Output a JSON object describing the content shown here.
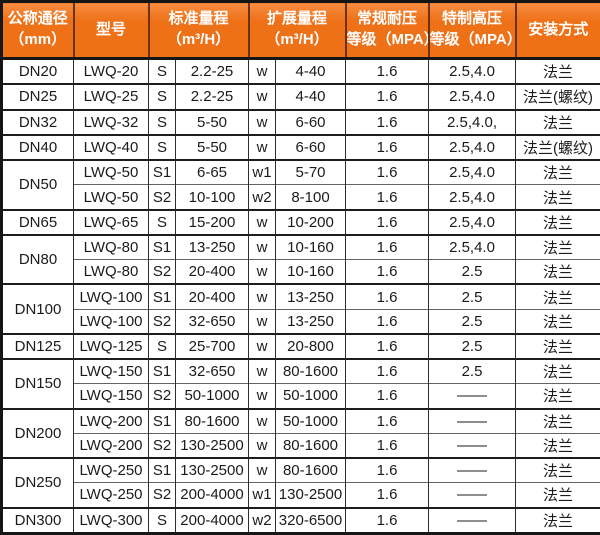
{
  "colors": {
    "header_bg": "#ee7118",
    "header_bg_highlight": "#f78d42",
    "header_text": "#ffffff",
    "header_divider": "#6e3208",
    "border_outer": "#161616",
    "border_group": "#1d1d1d",
    "border_row": "#636363",
    "border_vertical": "#2e2e2e",
    "body_bg": "#ffffff",
    "body_text": "#1b1b1b"
  },
  "chart_data": {
    "type": "table",
    "title": "",
    "header": {
      "cells": [
        {
          "lines": [
            "公称通径",
            "（mm）"
          ],
          "colspan": 1,
          "name": "nominal-diameter"
        },
        {
          "lines": [
            "型号"
          ],
          "colspan": 1,
          "name": "model"
        },
        {
          "lines": [
            "标准量程",
            "（m³/H）"
          ],
          "colspan": 2,
          "name": "standard-range"
        },
        {
          "lines": [
            "扩展量程",
            "（m³/H）"
          ],
          "colspan": 2,
          "name": "extended-range"
        },
        {
          "lines": [
            "常规耐压",
            "等级（MPA）"
          ],
          "colspan": 1,
          "name": "standard-pressure-rating"
        },
        {
          "lines": [
            "特制高压",
            "等级（MPA）"
          ],
          "colspan": 1,
          "name": "high-pressure-rating"
        },
        {
          "lines": [
            "安装方式"
          ],
          "colspan": 1,
          "name": "installation-method"
        }
      ]
    },
    "groups": [
      {
        "dn": "DN20",
        "rows": [
          {
            "model": "LWQ-20",
            "std_code": "S",
            "std_range": "2.2-25",
            "ext_code": "w",
            "ext_range": "4-40",
            "pressure": "1.6",
            "high_pressure": "2.5,4.0",
            "install": "法兰"
          }
        ]
      },
      {
        "dn": "DN25",
        "rows": [
          {
            "model": "LWQ-25",
            "std_code": "S",
            "std_range": "2.2-25",
            "ext_code": "w",
            "ext_range": "4-40",
            "pressure": "1.6",
            "high_pressure": "2.5,4.0",
            "install": "法兰(螺纹)"
          }
        ]
      },
      {
        "dn": "DN32",
        "rows": [
          {
            "model": "LWQ-32",
            "std_code": "S",
            "std_range": "5-50",
            "ext_code": "w",
            "ext_range": "6-60",
            "pressure": "1.6",
            "high_pressure": "2.5,4.0,",
            "install": "法兰"
          }
        ]
      },
      {
        "dn": "DN40",
        "rows": [
          {
            "model": "LWQ-40",
            "std_code": "S",
            "std_range": "5-50",
            "ext_code": "w",
            "ext_range": "6-60",
            "pressure": "1.6",
            "high_pressure": "2.5,4.0",
            "install": "法兰(螺纹)"
          }
        ]
      },
      {
        "dn": "DN50",
        "rows": [
          {
            "model": "LWQ-50",
            "std_code": "S1",
            "std_range": "6-65",
            "ext_code": "w1",
            "ext_range": "5-70",
            "pressure": "1.6",
            "high_pressure": "2.5,4.0",
            "install": "法兰"
          },
          {
            "model": "LWQ-50",
            "std_code": "S2",
            "std_range": "10-100",
            "ext_code": "w2",
            "ext_range": "8-100",
            "pressure": "1.6",
            "high_pressure": "2.5,4.0",
            "install": "法兰"
          }
        ]
      },
      {
        "dn": "DN65",
        "rows": [
          {
            "model": "LWQ-65",
            "std_code": "S",
            "std_range": "15-200",
            "ext_code": "w",
            "ext_range": "10-200",
            "pressure": "1.6",
            "high_pressure": "2.5,4.0",
            "install": "法兰"
          }
        ]
      },
      {
        "dn": "DN80",
        "rows": [
          {
            "model": "LWQ-80",
            "std_code": "S1",
            "std_range": "13-250",
            "ext_code": "w",
            "ext_range": "10-160",
            "pressure": "1.6",
            "high_pressure": "2.5,4.0",
            "install": "法兰"
          },
          {
            "model": "LWQ-80",
            "std_code": "S2",
            "std_range": "20-400",
            "ext_code": "w",
            "ext_range": "10-160",
            "pressure": "1.6",
            "high_pressure": "2.5",
            "install": "法兰"
          }
        ]
      },
      {
        "dn": "DN100",
        "rows": [
          {
            "model": "LWQ-100",
            "std_code": "S1",
            "std_range": "20-400",
            "ext_code": "w",
            "ext_range": "13-250",
            "pressure": "1.6",
            "high_pressure": "2.5",
            "install": "法兰"
          },
          {
            "model": "LWQ-100",
            "std_code": "S2",
            "std_range": "32-650",
            "ext_code": "w",
            "ext_range": "13-250",
            "pressure": "1.6",
            "high_pressure": "2.5",
            "install": "法兰"
          }
        ]
      },
      {
        "dn": "DN125",
        "rows": [
          {
            "model": "LWQ-125",
            "std_code": "S",
            "std_range": "25-700",
            "ext_code": "w",
            "ext_range": "20-800",
            "pressure": "1.6",
            "high_pressure": "2.5",
            "install": "法兰"
          }
        ]
      },
      {
        "dn": "DN150",
        "rows": [
          {
            "model": "LWQ-150",
            "std_code": "S1",
            "std_range": "32-650",
            "ext_code": "w",
            "ext_range": "80-1600",
            "pressure": "1.6",
            "high_pressure": "2.5",
            "install": "法兰"
          },
          {
            "model": "LWQ-150",
            "std_code": "S2",
            "std_range": "50-1000",
            "ext_code": "w",
            "ext_range": "50-1000",
            "pressure": "1.6",
            "high_pressure": "——",
            "install": "法兰"
          }
        ]
      },
      {
        "dn": "DN200",
        "rows": [
          {
            "model": "LWQ-200",
            "std_code": "S1",
            "std_range": "80-1600",
            "ext_code": "w",
            "ext_range": "50-1000",
            "pressure": "1.6",
            "high_pressure": "——",
            "install": "法兰"
          },
          {
            "model": "LWQ-200",
            "std_code": "S2",
            "std_range": "130-2500",
            "ext_code": "w",
            "ext_range": "80-1600",
            "pressure": "1.6",
            "high_pressure": "——",
            "install": "法兰"
          }
        ]
      },
      {
        "dn": "DN250",
        "rows": [
          {
            "model": "LWQ-250",
            "std_code": "S1",
            "std_range": "130-2500",
            "ext_code": "w",
            "ext_range": "80-1600",
            "pressure": "1.6",
            "high_pressure": "——",
            "install": "法兰"
          },
          {
            "model": "LWQ-250",
            "std_code": "S2",
            "std_range": "200-4000",
            "ext_code": "w1",
            "ext_range": "130-2500",
            "pressure": "1.6",
            "high_pressure": "——",
            "install": "法兰"
          }
        ]
      },
      {
        "dn": "DN300",
        "rows": [
          {
            "model": "LWQ-300",
            "std_code": "S",
            "std_range": "200-4000",
            "ext_code": "w2",
            "ext_range": "320-6500",
            "pressure": "1.6",
            "high_pressure": "——",
            "install": "法兰"
          }
        ]
      }
    ]
  }
}
